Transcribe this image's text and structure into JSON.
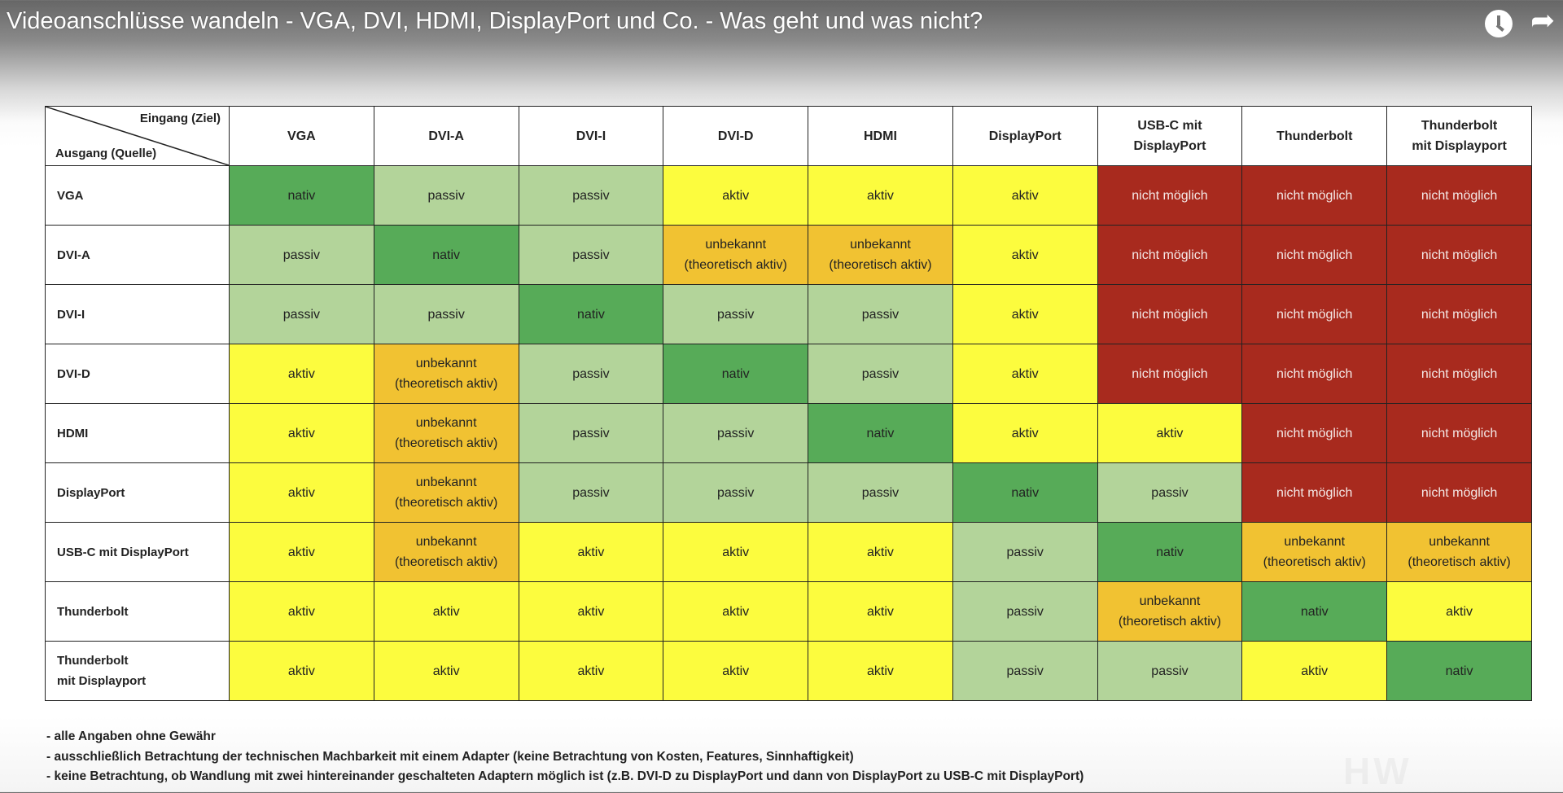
{
  "video": {
    "title": "Videoanschlüsse wandeln - VGA, DVI, HDMI, DisplayPort und Co. - Was geht und was nicht?"
  },
  "table": {
    "corner_in": "Eingang (Ziel)",
    "corner_out": "Ausgang (Quelle)",
    "columns": [
      "VGA",
      "DVI-A",
      "DVI-I",
      "DVI-D",
      "HDMI",
      "DisplayPort",
      "USB-C mit\nDisplayPort",
      "Thunderbolt",
      "Thunderbolt\nmit Displayport"
    ],
    "rows": [
      "VGA",
      "DVI-A",
      "DVI-I",
      "DVI-D",
      "HDMI",
      "DisplayPort",
      "USB-C mit DisplayPort",
      "Thunderbolt",
      "Thunderbolt\nmit Displayport"
    ],
    "legend": {
      "n": {
        "label": "nativ",
        "color": "#57ab58"
      },
      "p": {
        "label": "passiv",
        "color": "#b3d49a"
      },
      "a": {
        "label": "aktiv",
        "color": "#fcfc3e"
      },
      "u": {
        "label": "unbekannt\n(theoretisch aktiv)",
        "color": "#f1c232"
      },
      "x": {
        "label": "nicht möglich",
        "color": "#a82a1e"
      }
    },
    "cells": [
      [
        "n",
        "p",
        "p",
        "a",
        "a",
        "a",
        "x",
        "x",
        "x"
      ],
      [
        "p",
        "n",
        "p",
        "u",
        "u",
        "a",
        "x",
        "x",
        "x"
      ],
      [
        "p",
        "p",
        "n",
        "p",
        "p",
        "a",
        "x",
        "x",
        "x"
      ],
      [
        "a",
        "u",
        "p",
        "n",
        "p",
        "a",
        "x",
        "x",
        "x"
      ],
      [
        "a",
        "u",
        "p",
        "p",
        "n",
        "a",
        "a",
        "x",
        "x"
      ],
      [
        "a",
        "u",
        "p",
        "p",
        "p",
        "n",
        "p",
        "x",
        "x"
      ],
      [
        "a",
        "u",
        "a",
        "a",
        "a",
        "p",
        "n",
        "u",
        "u"
      ],
      [
        "a",
        "a",
        "a",
        "a",
        "a",
        "p",
        "u",
        "n",
        "a"
      ],
      [
        "a",
        "a",
        "a",
        "a",
        "a",
        "p",
        "p",
        "a",
        "n"
      ]
    ]
  },
  "notes": [
    "- alle Angaben ohne Gewähr",
    "- ausschließlich Betrachtung der technischen Machbarkeit mit einem Adapter (keine Betrachtung von Kosten, Features, Sinnhaftigkeit)",
    "- keine Betrachtung, ob Wandlung mit zwei hintereinander geschalteten Adaptern möglich ist (z.B. DVI-D zu DisplayPort und dann von DisplayPort zu USB-C mit DisplayPort)"
  ]
}
